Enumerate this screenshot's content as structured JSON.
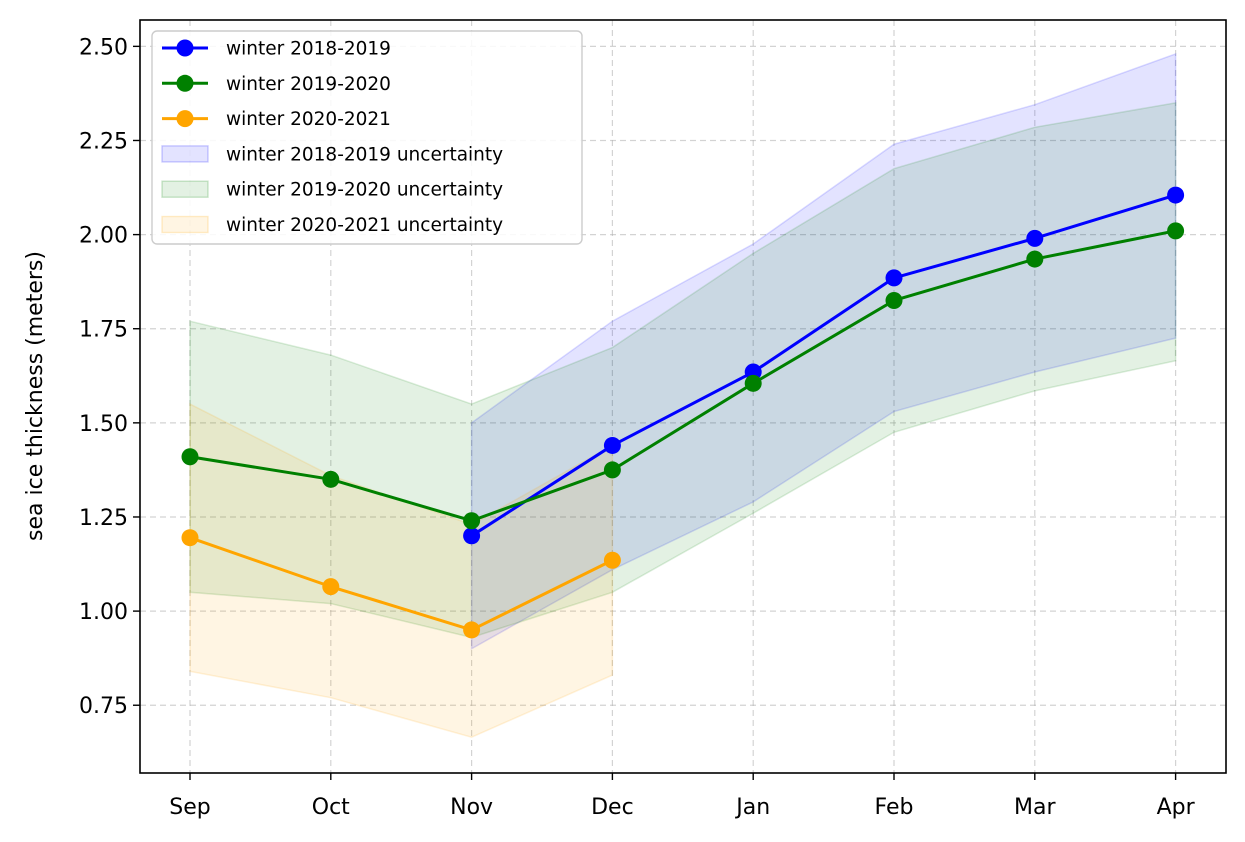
{
  "chart_data": {
    "type": "line",
    "title": "",
    "xlabel": "",
    "ylabel": "sea ice thickness (meters)",
    "categories": [
      "Sep",
      "Oct",
      "Nov",
      "Dec",
      "Jan",
      "Feb",
      "Mar",
      "Apr"
    ],
    "yticks": [
      "0.75",
      "1.00",
      "1.25",
      "1.50",
      "1.75",
      "2.00",
      "2.25",
      "2.50"
    ],
    "ylim": [
      0.57,
      2.57
    ],
    "grid": true,
    "legend_position": "top-left",
    "series": [
      {
        "name": "winter 2018-2019",
        "color": "#0000ff",
        "values": [
          null,
          null,
          1.2,
          1.44,
          1.635,
          1.885,
          1.99,
          2.105
        ],
        "upper": [
          null,
          null,
          1.5,
          1.77,
          1.975,
          2.24,
          2.345,
          2.48
        ],
        "lower": [
          null,
          null,
          0.9,
          1.11,
          1.29,
          1.53,
          1.635,
          1.725
        ]
      },
      {
        "name": "winter 2019-2020",
        "color": "#008000",
        "values": [
          1.41,
          1.35,
          1.24,
          1.375,
          1.605,
          1.825,
          1.935,
          2.01
        ],
        "upper": [
          1.77,
          1.68,
          1.55,
          1.7,
          1.95,
          2.175,
          2.285,
          2.35
        ],
        "lower": [
          1.05,
          1.02,
          0.93,
          1.05,
          1.26,
          1.475,
          1.585,
          1.665
        ]
      },
      {
        "name": "winter 2020-2021",
        "color": "#ffa500",
        "values": [
          1.195,
          1.065,
          0.95,
          1.135,
          null,
          null,
          null,
          null
        ],
        "upper": [
          1.55,
          1.36,
          1.23,
          1.44,
          null,
          null,
          null,
          null
        ],
        "lower": [
          0.84,
          0.77,
          0.665,
          0.83,
          null,
          null,
          null,
          null
        ]
      }
    ],
    "legend": [
      {
        "label": "winter 2018-2019",
        "kind": "line",
        "series": 0
      },
      {
        "label": "winter 2019-2020",
        "kind": "line",
        "series": 1
      },
      {
        "label": "winter 2020-2021",
        "kind": "line",
        "series": 2
      },
      {
        "label": "winter 2018-2019 uncertainty",
        "kind": "band",
        "series": 0
      },
      {
        "label": "winter 2019-2020 uncertainty",
        "kind": "band",
        "series": 1
      },
      {
        "label": "winter 2020-2021 uncertainty",
        "kind": "band",
        "series": 2
      }
    ]
  }
}
